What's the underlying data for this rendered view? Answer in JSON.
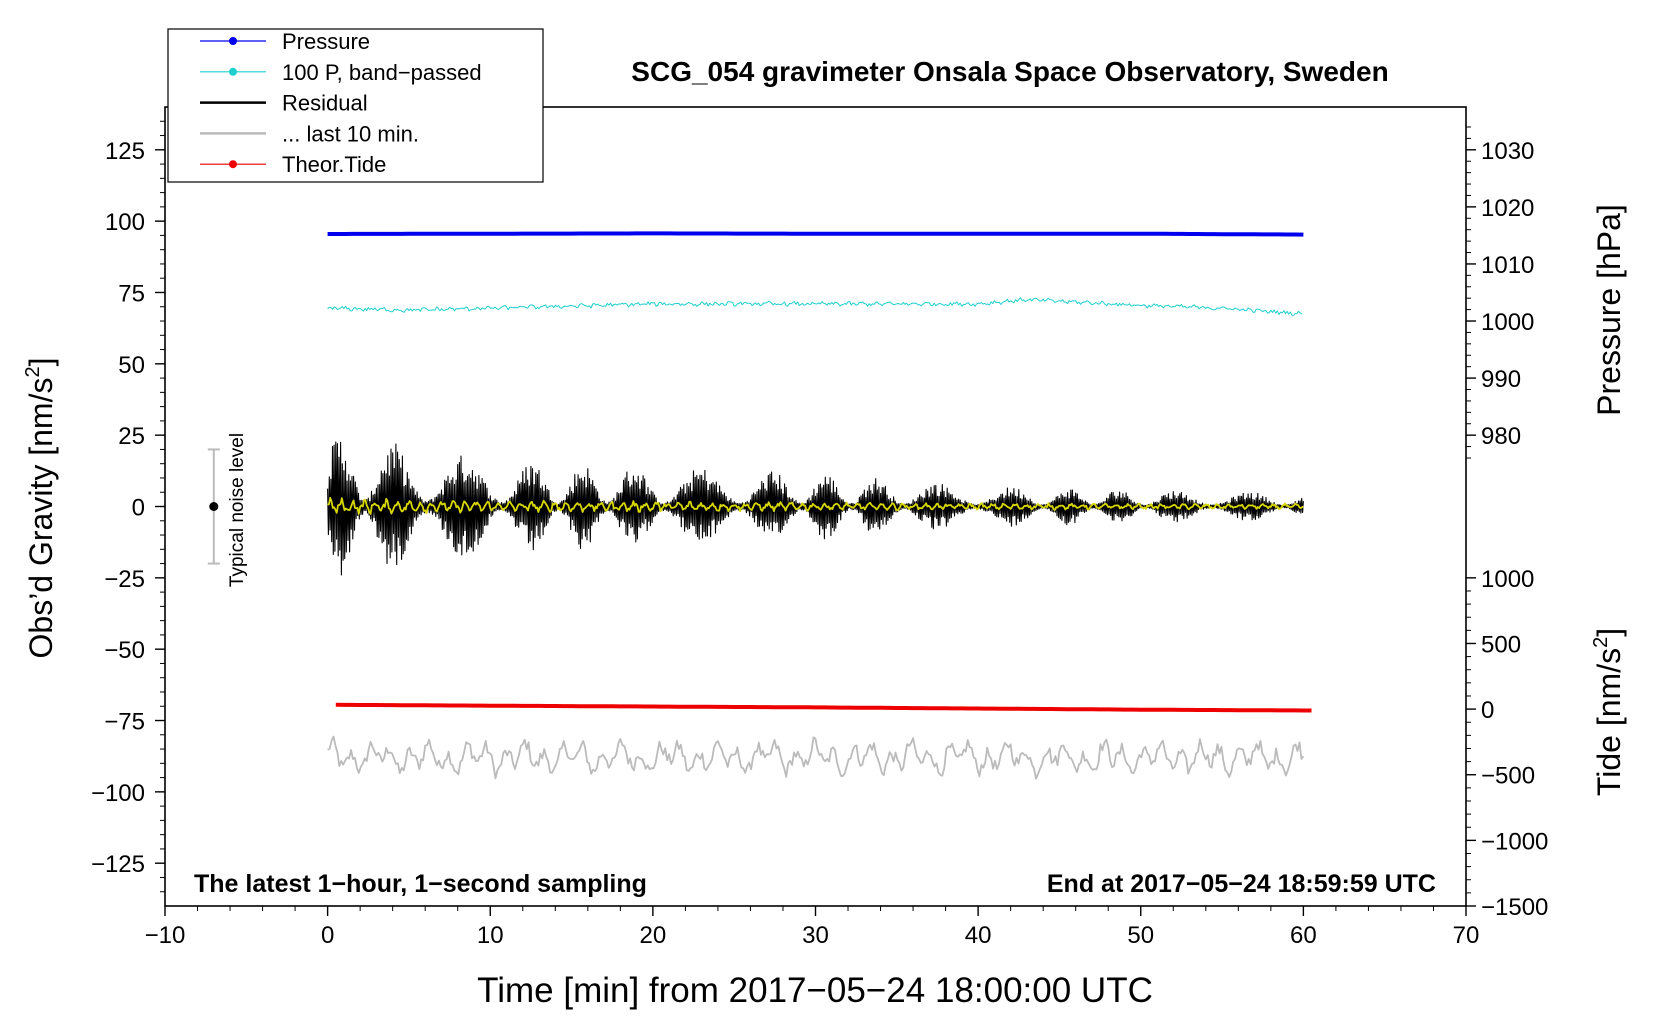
{
  "chart_data": {
    "type": "line",
    "title": "SCG_054 gravimeter Onsala Space Observatory, Sweden",
    "xlabel": "Time [min] from 2017−05−24 18:00:00 UTC",
    "ylabel_left": "Obs’d Gravity [nm/s",
    "ylabel_left_sup": "2",
    "ylabel_left_close": "]",
    "ylabel_right_top": "Pressure [hPa]",
    "ylabel_right_bottom": "Tide [nm/s",
    "ylabel_right_bottom_sup": "2",
    "ylabel_right_bottom_close": "]",
    "xlim": [
      -10,
      70
    ],
    "ylim": [
      -140,
      140
    ],
    "x_ticks": [
      -10,
      0,
      10,
      20,
      30,
      40,
      50,
      60,
      70
    ],
    "x_tick_labels": [
      "−10",
      "0",
      "10",
      "20",
      "30",
      "40",
      "50",
      "60",
      "70"
    ],
    "y_ticks": [
      125,
      100,
      75,
      50,
      25,
      0,
      -25,
      -50,
      -75,
      -100,
      -125
    ],
    "y_tick_labels": [
      "125",
      "100",
      "75",
      "50",
      "25",
      "0",
      "−25",
      "−50",
      "−75",
      "−100",
      "−125"
    ],
    "pressure_axis": {
      "ticks": [
        1030,
        1020,
        1010,
        1000,
        990,
        980
      ],
      "tick_labels": [
        "1030",
        "1020",
        "1010",
        "1000",
        "990",
        "980"
      ],
      "maps_to_gravity": [
        [
          1030,
          125
        ],
        [
          980,
          25
        ]
      ]
    },
    "tide_axis": {
      "ticks": [
        1000,
        500,
        0,
        -500,
        -1000,
        -1500
      ],
      "tick_labels": [
        "1000",
        "500",
        "0",
        "−500",
        "−1000",
        "−1500"
      ],
      "maps_to_gravity": [
        [
          1000,
          -25
        ],
        [
          -1500,
          -140
        ]
      ]
    },
    "legend": {
      "position": "top-left",
      "entries": [
        {
          "label": "Pressure",
          "color": "#0000ee",
          "marker": true
        },
        {
          "label": "100 P, band−passed",
          "color": "#1fcfcf",
          "marker": true
        },
        {
          "label": "Residual",
          "color": "#000000",
          "marker": false
        },
        {
          "label": "... last 10 min.",
          "color": "#bbbbbb",
          "marker": false
        },
        {
          "label": "Theor.Tide",
          "color": "#ee0000",
          "marker": true
        }
      ]
    },
    "noise_bar": {
      "label": "Typical noise level",
      "x": -7,
      "center": 0,
      "low": -20,
      "high": 20
    },
    "annotation_left": "The latest 1−hour, 1−second sampling",
    "annotation_right": "End at 2017−05−24 18:59:59 UTC",
    "series": [
      {
        "name": "Pressure",
        "color": "#0000ee",
        "x": [
          0,
          10,
          20,
          30,
          40,
          50,
          56,
          60
        ],
        "values": [
          95.5,
          95.6,
          95.7,
          95.6,
          95.6,
          95.6,
          95.4,
          95.3
        ]
      },
      {
        "name": "100 P, band-passed",
        "color": "#1fcfcf",
        "x": [
          0,
          5,
          10,
          20,
          30,
          40,
          43,
          50,
          55,
          60
        ],
        "values": [
          69.5,
          68.8,
          69.5,
          71,
          71,
          71,
          72.5,
          70.5,
          69.5,
          67.5
        ]
      },
      {
        "name": "Residual",
        "color": "#000000",
        "x": [
          0,
          10,
          20,
          30,
          40,
          50,
          60
        ],
        "amplitude": [
          22,
          14,
          12,
          10,
          6,
          5,
          4
        ]
      },
      {
        "name": "Residual smoothed",
        "color": "#d8d800",
        "x": [
          0,
          10,
          20,
          30,
          40,
          50,
          60
        ],
        "amplitude": [
          3,
          2,
          2,
          1.5,
          1.2,
          1,
          1
        ]
      },
      {
        "name": "... last 10 min.",
        "color": "#bbbbbb",
        "x": [
          0,
          60
        ],
        "center": -88,
        "amplitude": 6
      },
      {
        "name": "Theor.Tide",
        "color": "#ee0000",
        "x": [
          0.5,
          10,
          20,
          30,
          40,
          50,
          60.5
        ],
        "values": [
          -69.5,
          -69.8,
          -70.1,
          -70.4,
          -70.8,
          -71.2,
          -71.5
        ]
      }
    ]
  }
}
